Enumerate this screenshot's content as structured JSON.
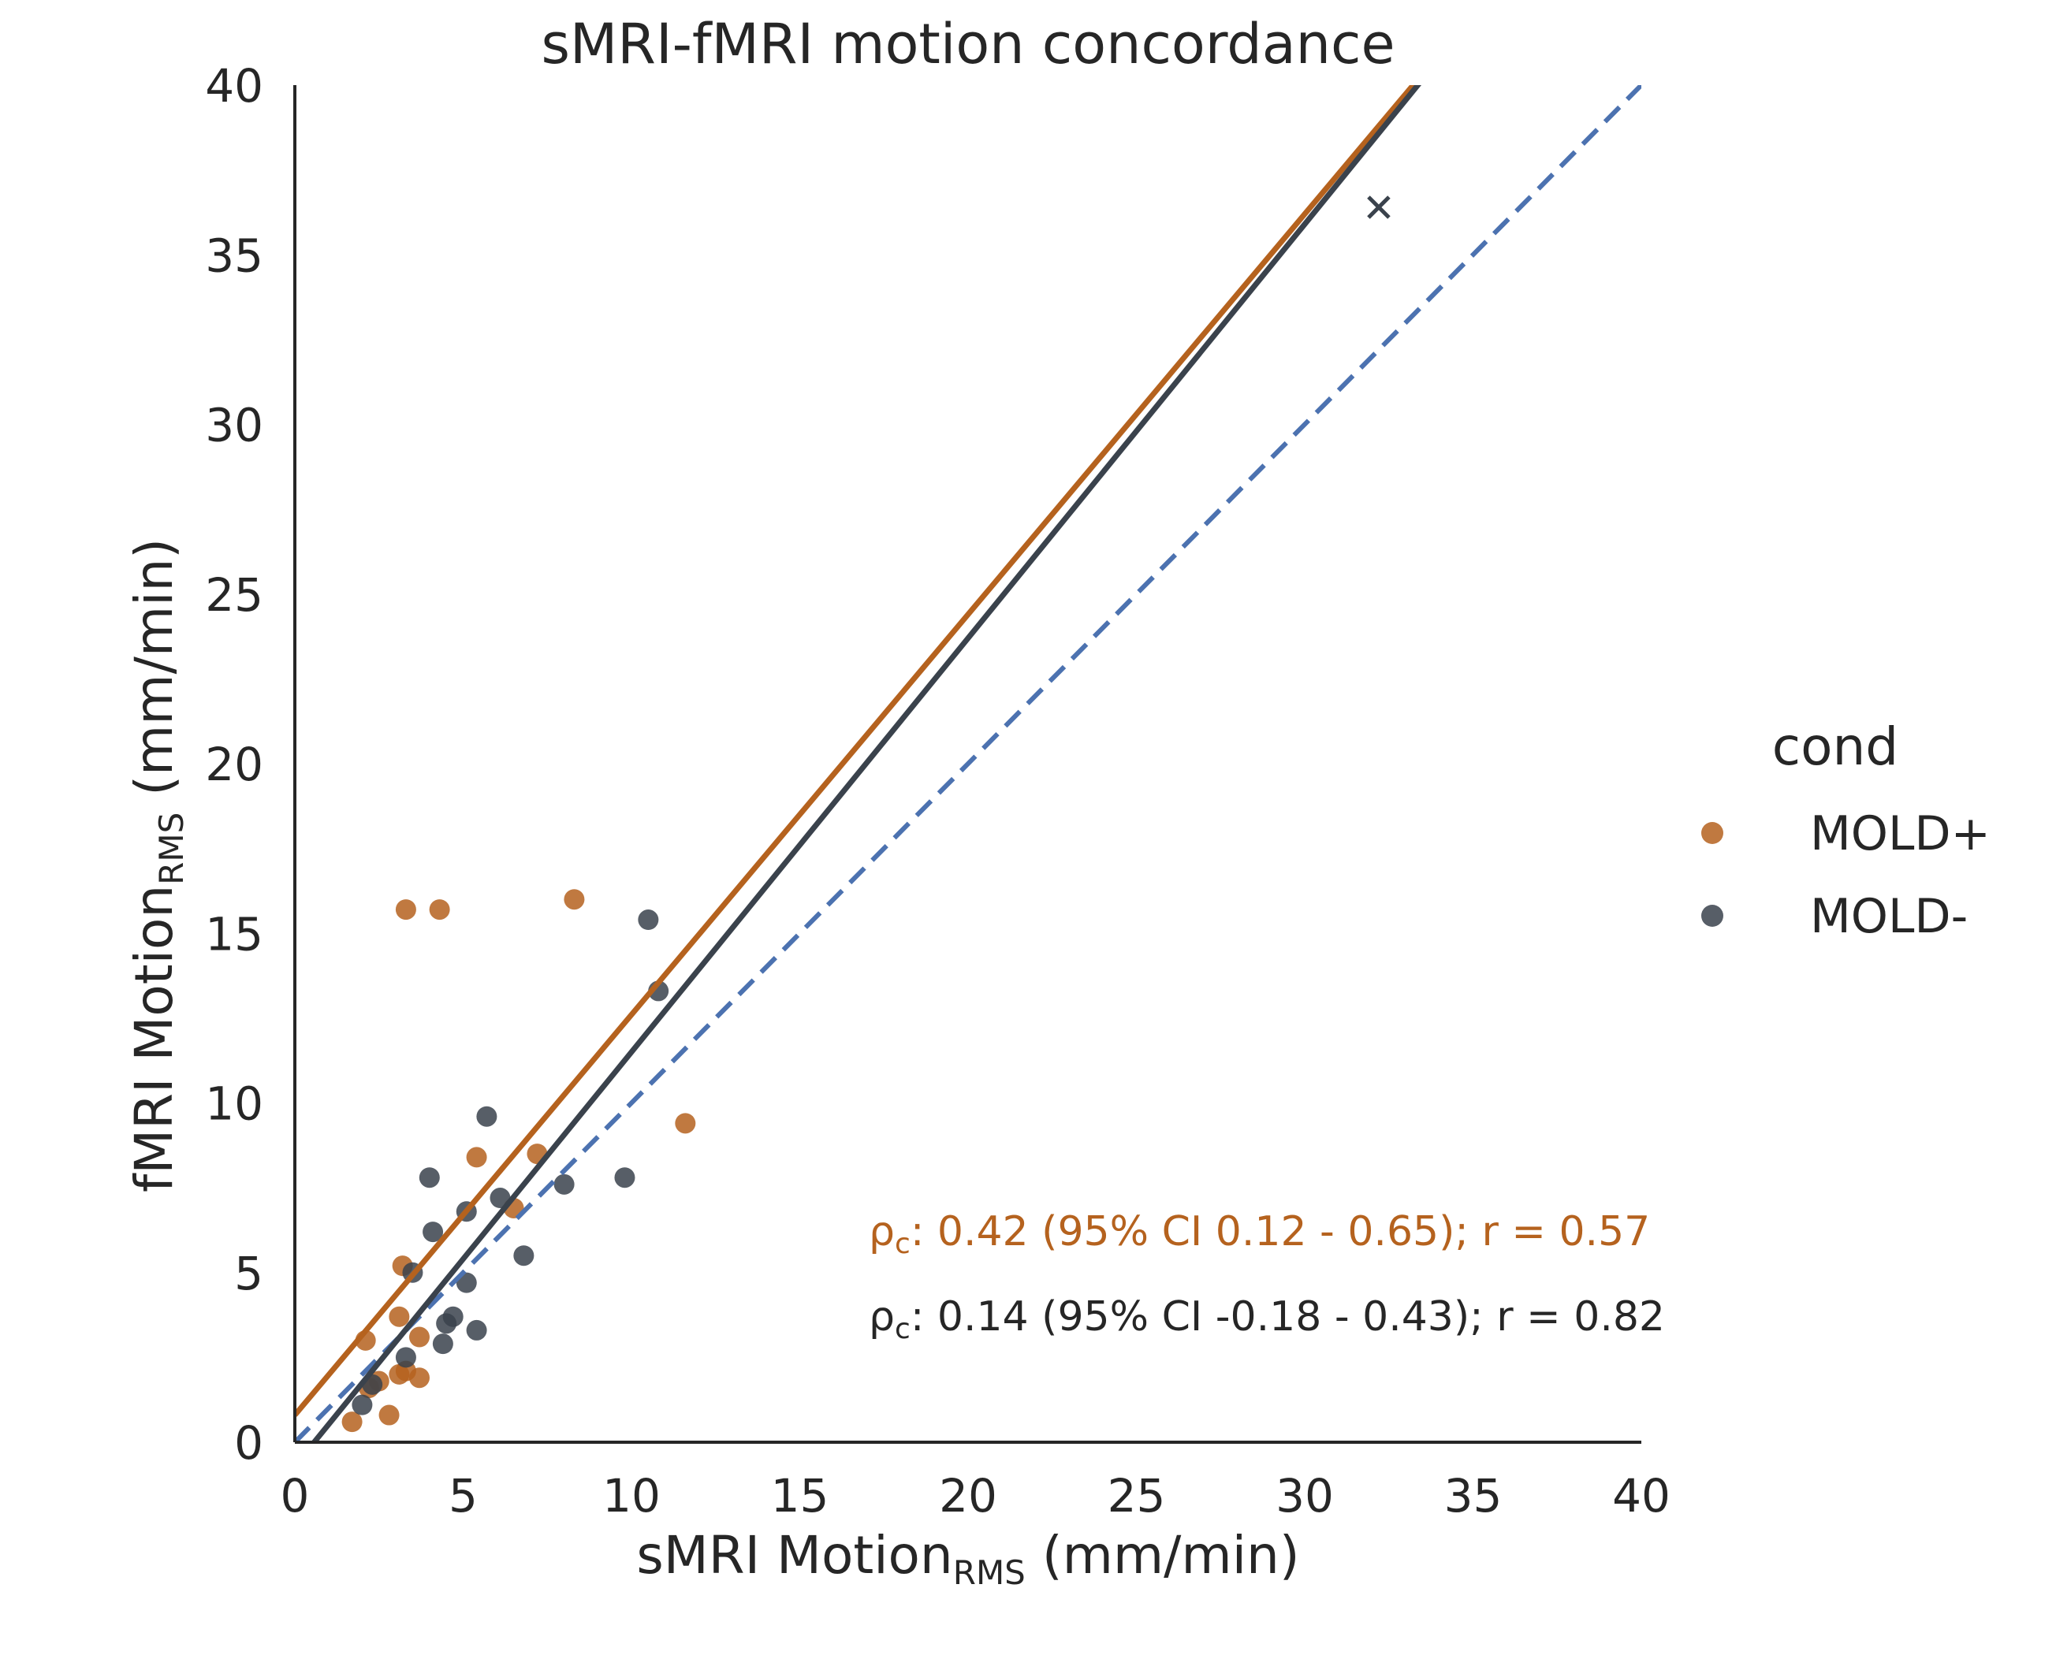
{
  "chart_data": {
    "type": "scatter",
    "title": "sMRI-fMRI motion concordance",
    "xlabel": {
      "main": "sMRI Motion",
      "sub": "RMS",
      "unit": " (mm/min)"
    },
    "ylabel": {
      "main": "fMRI Motion",
      "sub": "RMS",
      "unit": " (mm/min)"
    },
    "xlim": [
      0,
      40
    ],
    "ylim": [
      0,
      40
    ],
    "xticks": [
      "0",
      "5",
      "10",
      "15",
      "20",
      "25",
      "30",
      "35",
      "40"
    ],
    "yticks": [
      "0",
      "5",
      "10",
      "15",
      "20",
      "25",
      "30",
      "35",
      "40"
    ],
    "grid": false,
    "legend": {
      "title": "cond",
      "placement": "right",
      "entries": [
        {
          "label": "MOLD+",
          "color": "#b5621e"
        },
        {
          "label": "MOLD-",
          "color": "#3a424c"
        }
      ]
    },
    "identity_line": {
      "style": "dashed",
      "color": "#4c72b0",
      "slope": 1,
      "intercept": 0
    },
    "series": [
      {
        "label": "MOLD+",
        "color": "#b5621e",
        "fit": {
          "slope": 1.18,
          "intercept": 0.8
        },
        "points": [
          [
            1.7,
            0.6
          ],
          [
            2.1,
            3.0
          ],
          [
            2.2,
            1.6
          ],
          [
            2.5,
            1.8
          ],
          [
            2.8,
            0.8
          ],
          [
            3.1,
            2.0
          ],
          [
            3.1,
            3.7
          ],
          [
            3.2,
            5.2
          ],
          [
            3.3,
            2.1
          ],
          [
            3.7,
            1.9
          ],
          [
            3.7,
            3.1
          ],
          [
            3.3,
            15.7
          ],
          [
            4.3,
            15.7
          ],
          [
            5.4,
            8.4
          ],
          [
            6.5,
            6.9
          ],
          [
            7.2,
            8.5
          ],
          [
            8.3,
            16.0
          ],
          [
            11.6,
            9.4
          ]
        ]
      },
      {
        "label": "MOLD-",
        "color": "#3a424c",
        "fit": {
          "slope": 1.22,
          "intercept": -0.7
        },
        "points": [
          [
            2.0,
            1.1
          ],
          [
            2.3,
            1.7
          ],
          [
            3.3,
            2.5
          ],
          [
            3.5,
            5.0
          ],
          [
            4.0,
            7.8
          ],
          [
            4.1,
            6.2
          ],
          [
            4.4,
            2.9
          ],
          [
            4.5,
            3.5
          ],
          [
            4.7,
            3.7
          ],
          [
            5.1,
            4.7
          ],
          [
            5.1,
            6.8
          ],
          [
            5.4,
            3.3
          ],
          [
            5.7,
            9.6
          ],
          [
            6.1,
            7.2
          ],
          [
            6.8,
            5.5
          ],
          [
            8.0,
            7.6
          ],
          [
            9.8,
            7.8
          ],
          [
            10.5,
            15.4
          ],
          [
            10.8,
            13.3
          ]
        ],
        "outlier": [
          32.2,
          36.4
        ]
      }
    ],
    "annotations": [
      {
        "rho": "ρ",
        "sub": "c",
        "text": ": 0.42 (95% CI 0.12 - 0.65); r = 0.57",
        "color": "#b5621e"
      },
      {
        "rho": "ρ",
        "sub": "c",
        "text": ": 0.14 (95% CI -0.18 - 0.43); r = 0.82",
        "color": "#262626"
      }
    ]
  }
}
